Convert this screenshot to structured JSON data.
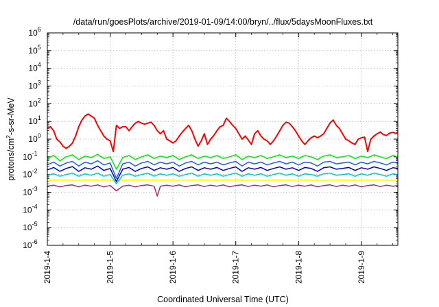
{
  "chart_data": {
    "type": "line",
    "title": "/data/run/goesPlots/archive/2019-01-09/14:00/bryn/../flux/5daysMoonFluxes.txt",
    "xlabel": "Coordinated Universal Time (UTC)",
    "ylabel": "protons/cm2-s-sr-MeV",
    "ylabel_parts": {
      "pre": "protons/cm",
      "sup": "2",
      "post": "-s-sr-MeV"
    },
    "yscale": "log",
    "ylim": [
      1e-06,
      1000000.0
    ],
    "y_tick_labels": [
      {
        "base": "10",
        "exp": "-6"
      },
      {
        "base": "10",
        "exp": "-5"
      },
      {
        "base": "10",
        "exp": "-4"
      },
      {
        "base": "10",
        "exp": "-3"
      },
      {
        "base": "10",
        "exp": "-2"
      },
      {
        "base": "10",
        "exp": "-1"
      },
      {
        "base": "10",
        "exp": "0"
      },
      {
        "base": "10",
        "exp": "1"
      },
      {
        "base": "10",
        "exp": "2"
      },
      {
        "base": "10",
        "exp": "3"
      },
      {
        "base": "10",
        "exp": "4"
      },
      {
        "base": "10",
        "exp": "5"
      },
      {
        "base": "10",
        "exp": "6"
      }
    ],
    "x_tick_labels": [
      "2019-1-4",
      "2019-1-5",
      "2019-1-6",
      "2019-1-7",
      "2019-1-8",
      "2019-1-9"
    ],
    "x_tick_days": [
      0,
      1,
      2,
      3,
      4,
      5
    ],
    "xlim_days": [
      0,
      5.58
    ],
    "grid": true,
    "legend": "none",
    "series": [
      {
        "color": "#ff0000",
        "width": 2.0,
        "x": [
          0.0,
          0.05,
          0.1,
          0.15,
          0.2,
          0.25,
          0.3,
          0.35,
          0.4,
          0.45,
          0.5,
          0.55,
          0.6,
          0.65,
          0.7,
          0.75,
          0.8,
          0.85,
          0.9,
          0.95,
          1.0,
          1.05,
          1.1,
          1.15,
          1.2,
          1.25,
          1.3,
          1.35,
          1.4,
          1.45,
          1.5,
          1.55,
          1.6,
          1.65,
          1.7,
          1.75,
          1.8,
          1.85,
          1.9,
          1.95,
          2.0,
          2.05,
          2.1,
          2.15,
          2.2,
          2.25,
          2.3,
          2.35,
          2.4,
          2.45,
          2.5,
          2.55,
          2.6,
          2.65,
          2.7,
          2.75,
          2.8,
          2.85,
          2.9,
          2.95,
          3.0,
          3.05,
          3.1,
          3.15,
          3.2,
          3.25,
          3.3,
          3.35,
          3.4,
          3.45,
          3.5,
          3.55,
          3.6,
          3.65,
          3.7,
          3.75,
          3.8,
          3.85,
          3.9,
          3.95,
          4.0,
          4.05,
          4.1,
          4.15,
          4.2,
          4.25,
          4.3,
          4.35,
          4.4,
          4.45,
          4.5,
          4.55,
          4.6,
          4.65,
          4.7,
          4.75,
          4.8,
          4.85,
          4.9,
          4.95,
          5.0,
          5.05,
          5.1,
          5.15,
          5.2,
          5.25,
          5.3,
          5.35,
          5.4,
          5.45,
          5.5,
          5.55,
          5.58
        ],
        "y": [
          4,
          5,
          3,
          1,
          0.7,
          0.4,
          0.3,
          0.4,
          0.6,
          1.5,
          5,
          12,
          20,
          26,
          20,
          15,
          6,
          3,
          1.5,
          1,
          0.8,
          0.2,
          6,
          4,
          5,
          5,
          3,
          5,
          8,
          10,
          8,
          7,
          8,
          9,
          6,
          3,
          2,
          3,
          1,
          0.8,
          0.6,
          0.8,
          1.5,
          2.5,
          4,
          6,
          3,
          1,
          0.4,
          0.8,
          2,
          0.5,
          1,
          1.6,
          3,
          5,
          6,
          15,
          10,
          6,
          4,
          2,
          1,
          1.5,
          0.9,
          0.5,
          2,
          3,
          1.5,
          1,
          0.8,
          0.5,
          0.8,
          1.5,
          3,
          6,
          9,
          8,
          5,
          3,
          1.5,
          0.8,
          0.5,
          0.8,
          1.2,
          1.5,
          1.2,
          1.5,
          2,
          4,
          8,
          12,
          6,
          4,
          2,
          1,
          0.8,
          0.6,
          0.5,
          1,
          1.2,
          1.3,
          0.2,
          1,
          1.5,
          2,
          2.5,
          1.8,
          1.6,
          2.2,
          2.4,
          2.1,
          2.5
        ]
      },
      {
        "color": "#00ee00",
        "width": 1.5,
        "x": [
          0.0,
          0.1,
          0.2,
          0.3,
          0.4,
          0.5,
          0.6,
          0.7,
          0.8,
          0.9,
          1.0,
          1.1,
          1.2,
          1.3,
          1.4,
          1.5,
          1.6,
          1.7,
          1.8,
          1.9,
          2.0,
          2.1,
          2.2,
          2.3,
          2.4,
          2.5,
          2.6,
          2.7,
          2.8,
          2.9,
          3.0,
          3.1,
          3.2,
          3.3,
          3.4,
          3.5,
          3.6,
          3.7,
          3.8,
          3.9,
          4.0,
          4.1,
          4.2,
          4.3,
          4.4,
          4.5,
          4.6,
          4.7,
          4.8,
          4.9,
          5.0,
          5.1,
          5.2,
          5.3,
          5.4,
          5.5,
          5.58
        ],
        "y": [
          0.08,
          0.12,
          0.06,
          0.1,
          0.13,
          0.07,
          0.11,
          0.09,
          0.14,
          0.08,
          0.1,
          0.02,
          0.09,
          0.12,
          0.07,
          0.1,
          0.13,
          0.08,
          0.11,
          0.09,
          0.12,
          0.07,
          0.1,
          0.13,
          0.08,
          0.11,
          0.09,
          0.12,
          0.08,
          0.1,
          0.13,
          0.07,
          0.11,
          0.09,
          0.12,
          0.08,
          0.1,
          0.13,
          0.09,
          0.11,
          0.08,
          0.12,
          0.1,
          0.07,
          0.11,
          0.13,
          0.09,
          0.1,
          0.12,
          0.08,
          0.11,
          0.09,
          0.13,
          0.1,
          0.08,
          0.12,
          0.1
        ]
      },
      {
        "color": "#1e5aff",
        "width": 1.5,
        "x": [
          0.0,
          0.1,
          0.2,
          0.3,
          0.4,
          0.5,
          0.6,
          0.7,
          0.8,
          0.9,
          1.0,
          1.1,
          1.2,
          1.3,
          1.4,
          1.5,
          1.6,
          1.7,
          1.8,
          1.9,
          2.0,
          2.1,
          2.2,
          2.3,
          2.4,
          2.5,
          2.6,
          2.7,
          2.8,
          2.9,
          3.0,
          3.1,
          3.2,
          3.3,
          3.4,
          3.5,
          3.6,
          3.7,
          3.8,
          3.9,
          4.0,
          4.1,
          4.2,
          4.3,
          4.4,
          4.5,
          4.6,
          4.7,
          4.8,
          4.9,
          5.0,
          5.1,
          5.2,
          5.3,
          5.4,
          5.5,
          5.58
        ],
        "y": [
          0.035,
          0.05,
          0.03,
          0.045,
          0.055,
          0.03,
          0.05,
          0.04,
          0.06,
          0.035,
          0.045,
          0.006,
          0.04,
          0.05,
          0.03,
          0.045,
          0.055,
          0.035,
          0.05,
          0.04,
          0.05,
          0.03,
          0.045,
          0.055,
          0.035,
          0.05,
          0.04,
          0.05,
          0.035,
          0.045,
          0.055,
          0.03,
          0.05,
          0.04,
          0.05,
          0.035,
          0.045,
          0.055,
          0.04,
          0.05,
          0.035,
          0.05,
          0.045,
          0.03,
          0.05,
          0.055,
          0.04,
          0.045,
          0.05,
          0.035,
          0.05,
          0.04,
          0.055,
          0.045,
          0.035,
          0.05,
          0.045
        ]
      },
      {
        "color": "#0000cc",
        "width": 1.5,
        "x": [
          0.0,
          0.1,
          0.2,
          0.3,
          0.4,
          0.5,
          0.6,
          0.7,
          0.8,
          0.9,
          1.0,
          1.1,
          1.2,
          1.3,
          1.4,
          1.5,
          1.6,
          1.7,
          1.8,
          1.9,
          2.0,
          2.1,
          2.2,
          2.3,
          2.4,
          2.5,
          2.6,
          2.7,
          2.8,
          2.9,
          3.0,
          3.1,
          3.2,
          3.3,
          3.4,
          3.5,
          3.6,
          3.7,
          3.8,
          3.9,
          4.0,
          4.1,
          4.2,
          4.3,
          4.4,
          4.5,
          4.6,
          4.7,
          4.8,
          4.9,
          5.0,
          5.1,
          5.2,
          5.3,
          5.4,
          5.5,
          5.58
        ],
        "y": [
          0.018,
          0.025,
          0.015,
          0.022,
          0.028,
          0.015,
          0.024,
          0.02,
          0.03,
          0.017,
          0.022,
          0.004,
          0.02,
          0.025,
          0.015,
          0.022,
          0.027,
          0.017,
          0.024,
          0.02,
          0.025,
          0.015,
          0.022,
          0.027,
          0.017,
          0.024,
          0.02,
          0.025,
          0.017,
          0.022,
          0.027,
          0.015,
          0.024,
          0.02,
          0.025,
          0.017,
          0.022,
          0.027,
          0.02,
          0.024,
          0.017,
          0.025,
          0.022,
          0.015,
          0.024,
          0.027,
          0.02,
          0.022,
          0.025,
          0.017,
          0.024,
          0.02,
          0.027,
          0.022,
          0.017,
          0.024,
          0.022
        ]
      },
      {
        "color": "#00c8c8",
        "width": 1.5,
        "x": [
          0.0,
          0.1,
          0.2,
          0.3,
          0.4,
          0.5,
          0.6,
          0.7,
          0.8,
          0.9,
          1.0,
          1.1,
          1.2,
          1.3,
          1.4,
          1.5,
          1.6,
          1.7,
          1.8,
          1.9,
          2.0,
          2.1,
          2.2,
          2.3,
          2.4,
          2.5,
          2.6,
          2.7,
          2.8,
          2.9,
          3.0,
          3.1,
          3.2,
          3.3,
          3.4,
          3.5,
          3.6,
          3.7,
          3.8,
          3.9,
          4.0,
          4.1,
          4.2,
          4.3,
          4.4,
          4.5,
          4.6,
          4.7,
          4.8,
          4.9,
          5.0,
          5.1,
          5.2,
          5.3,
          5.4,
          5.5,
          5.58
        ],
        "y": [
          0.009,
          0.011,
          0.008,
          0.01,
          0.012,
          0.008,
          0.011,
          0.009,
          0.012,
          0.008,
          0.01,
          0.003,
          0.009,
          0.011,
          0.008,
          0.01,
          0.012,
          0.008,
          0.011,
          0.009,
          0.011,
          0.008,
          0.01,
          0.012,
          0.008,
          0.011,
          0.009,
          0.011,
          0.008,
          0.01,
          0.012,
          0.008,
          0.011,
          0.009,
          0.011,
          0.008,
          0.01,
          0.012,
          0.009,
          0.011,
          0.008,
          0.011,
          0.01,
          0.008,
          0.011,
          0.012,
          0.009,
          0.01,
          0.011,
          0.008,
          0.011,
          0.009,
          0.012,
          0.01,
          0.008,
          0.011,
          0.01
        ]
      },
      {
        "color": "#ffff00",
        "width": 1.5,
        "x": [
          0.0,
          0.2,
          0.4,
          0.6,
          0.8,
          1.0,
          1.1,
          1.2,
          1.4,
          1.6,
          1.8,
          2.0,
          2.2,
          2.4,
          2.6,
          2.8,
          3.0,
          3.2,
          3.4,
          3.6,
          3.8,
          4.0,
          4.2,
          4.4,
          4.6,
          4.8,
          5.0,
          5.2,
          5.4,
          5.58
        ],
        "y": [
          0.0048,
          0.005,
          0.0047,
          0.0049,
          0.005,
          0.0048,
          0.0045,
          0.0049,
          0.005,
          0.0048,
          0.005,
          0.0049,
          0.0047,
          0.005,
          0.0048,
          0.0049,
          0.005,
          0.0048,
          0.0047,
          0.005,
          0.0049,
          0.0048,
          0.005,
          0.0047,
          0.0049,
          0.005,
          0.0048,
          0.0049,
          0.0047,
          0.0048
        ]
      },
      {
        "color": "#9b2c6b",
        "width": 1.5,
        "x": [
          0.0,
          0.1,
          0.2,
          0.3,
          0.4,
          0.5,
          0.6,
          0.7,
          0.8,
          0.9,
          1.0,
          1.1,
          1.2,
          1.3,
          1.4,
          1.5,
          1.6,
          1.7,
          1.75,
          1.8,
          1.9,
          2.0,
          2.1,
          2.2,
          2.3,
          2.4,
          2.5,
          2.6,
          2.7,
          2.8,
          2.9,
          3.0,
          3.1,
          3.2,
          3.3,
          3.4,
          3.5,
          3.6,
          3.7,
          3.8,
          3.9,
          4.0,
          4.1,
          4.2,
          4.3,
          4.4,
          4.5,
          4.6,
          4.7,
          4.8,
          4.9,
          5.0,
          5.1,
          5.2,
          5.3,
          5.4,
          5.5,
          5.58
        ],
        "y": [
          0.0022,
          0.0025,
          0.002,
          0.0024,
          0.0026,
          0.002,
          0.0025,
          0.0022,
          0.0026,
          0.002,
          0.0024,
          0.0012,
          0.0022,
          0.0025,
          0.002,
          0.0024,
          0.0026,
          0.0022,
          0.0006,
          0.0022,
          0.0025,
          0.0022,
          0.0026,
          0.002,
          0.0024,
          0.0026,
          0.0021,
          0.0025,
          0.0022,
          0.0026,
          0.002,
          0.0024,
          0.0026,
          0.0021,
          0.0025,
          0.0022,
          0.0026,
          0.002,
          0.0024,
          0.0026,
          0.0021,
          0.0025,
          0.0022,
          0.0026,
          0.002,
          0.0024,
          0.0026,
          0.0021,
          0.0025,
          0.0022,
          0.0026,
          0.002,
          0.0024,
          0.0026,
          0.0021,
          0.0025,
          0.0022,
          0.0024
        ]
      }
    ]
  }
}
